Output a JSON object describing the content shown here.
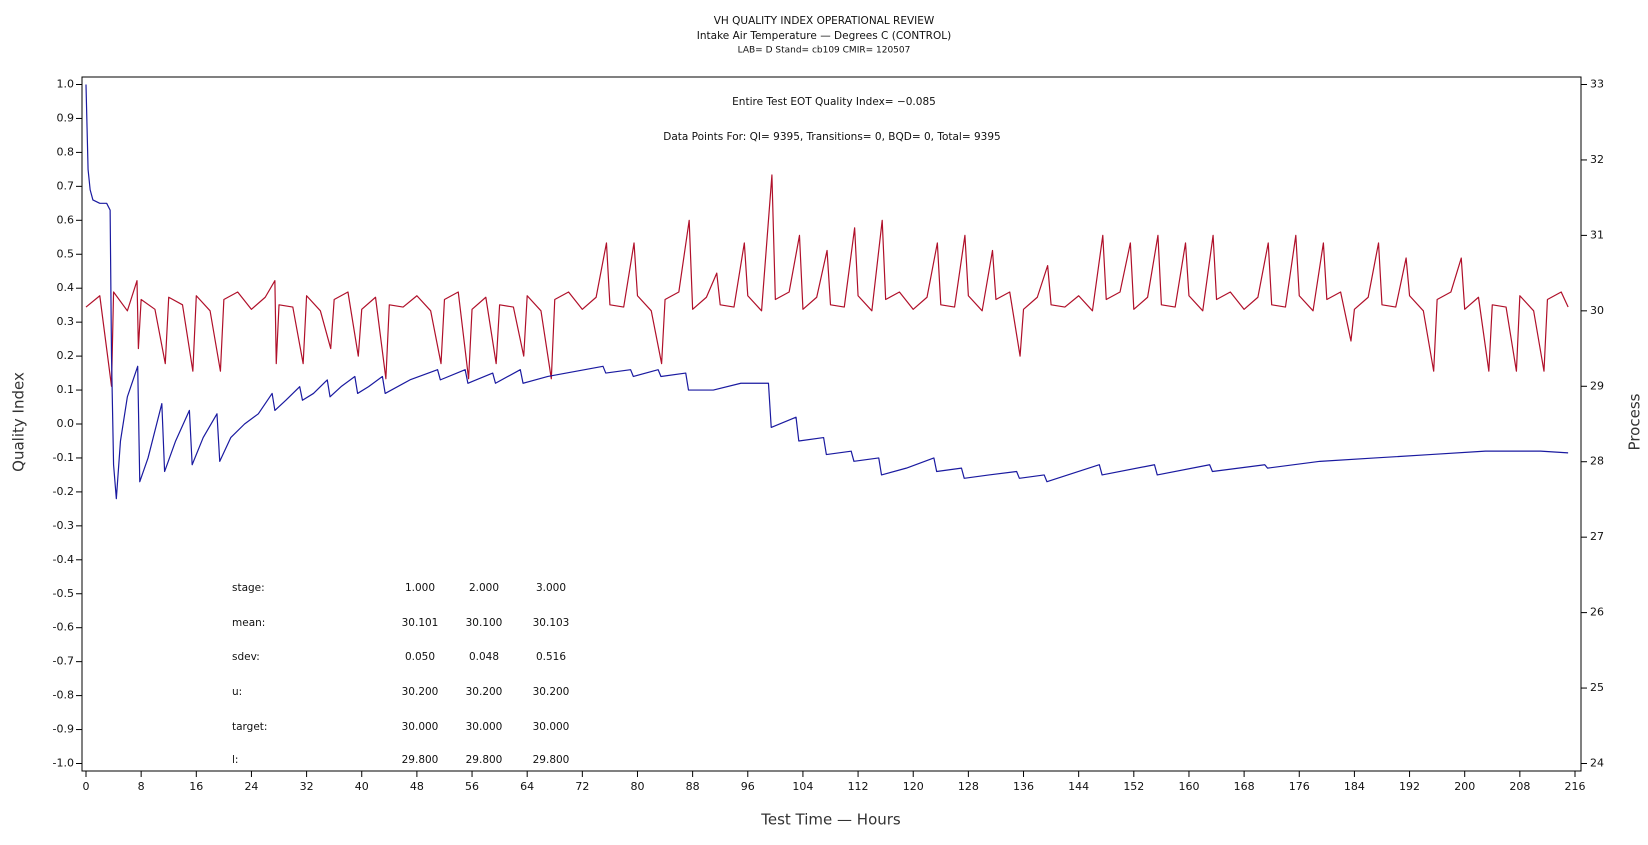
{
  "chart_data": {
    "type": "line",
    "title": "VH QUALITY INDEX OPERATIONAL REVIEW",
    "subtitle": "Intake Air Temperature — Degrees C (CONTROL)",
    "subtitle2": "LAB= D Stand= cb109 CMIR= 120507",
    "annotations": [
      "Entire Test EOT Quality Index=  −0.085",
      "Data Points For: QI=  9395, Transitions=     0, BQD=     0, Total=  9395"
    ],
    "stats": [
      {
        "label": "stage:",
        "values": [
          "1.000",
          "2.000",
          "3.000"
        ]
      },
      {
        "label": "mean:",
        "values": [
          "30.101",
          "30.100",
          "30.103"
        ]
      },
      {
        "label": "sdev:",
        "values": [
          "0.050",
          "0.048",
          "0.516"
        ]
      },
      {
        "label": "u:",
        "values": [
          "30.200",
          "30.200",
          "30.200"
        ]
      },
      {
        "label": "target:",
        "values": [
          "30.000",
          "30.000",
          "30.000"
        ]
      },
      {
        "label": "l:",
        "values": [
          "29.800",
          "29.800",
          "29.800"
        ]
      }
    ],
    "xlabel": "Test Time — Hours",
    "ylabel": "Quality Index",
    "y2label": "Process",
    "xlim": [
      0,
      216
    ],
    "xticks": [
      0,
      8,
      16,
      24,
      32,
      40,
      48,
      56,
      64,
      72,
      80,
      88,
      96,
      104,
      112,
      120,
      128,
      136,
      144,
      152,
      160,
      168,
      176,
      184,
      192,
      200,
      208,
      216
    ],
    "ylim": [
      -1.0,
      1.0
    ],
    "yticks": [
      {
        "value": 1.0,
        "label": "1.0"
      },
      0.9,
      0.8,
      0.7,
      0.6,
      0.5,
      0.4,
      0.3,
      0.2,
      0.1,
      {
        "value": 0.0,
        "label": "0.0"
      },
      -0.1,
      -0.2,
      -0.3,
      -0.4,
      -0.5,
      -0.6,
      -0.7,
      -0.8,
      -0.9,
      {
        "value": -1.0,
        "label": "-1.0"
      }
    ],
    "y2lim": [
      24,
      33
    ],
    "y2ticks": [
      24,
      25,
      26,
      27,
      28,
      29,
      30,
      31,
      32,
      33
    ],
    "series": [
      {
        "color": "#1a1aa0",
        "axis": "y",
        "x": [
          0,
          0.3,
          0.6,
          1,
          2,
          3,
          3.5,
          3.7,
          4,
          4.4,
          5,
          6,
          7.5,
          7.8,
          9,
          11,
          11.4,
          13,
          15,
          15.4,
          17,
          19,
          19.4,
          21,
          23,
          25,
          27,
          27.4,
          29,
          31,
          31.4,
          33,
          35,
          35.4,
          37,
          39,
          39.4,
          41,
          43,
          43.4,
          47,
          51,
          51.4,
          55,
          55.4,
          59,
          59.4,
          63,
          63.4,
          67,
          75,
          75.4,
          79,
          79.4,
          83,
          83.4,
          87,
          87.4,
          91,
          95,
          99,
          99.4,
          103,
          103.4,
          107,
          107.4,
          111,
          111.4,
          115,
          115.4,
          119,
          123,
          123.4,
          127,
          127.4,
          131,
          135,
          135.4,
          139,
          139.4,
          147,
          147.4,
          155,
          155.4,
          163,
          163.4,
          171,
          171.4,
          179,
          187,
          195,
          203,
          211,
          215
        ],
        "values": [
          1.0,
          0.75,
          0.69,
          0.66,
          0.65,
          0.65,
          0.63,
          0.2,
          -0.12,
          -0.22,
          -0.05,
          0.08,
          0.17,
          -0.17,
          -0.1,
          0.06,
          -0.14,
          -0.05,
          0.04,
          -0.12,
          -0.04,
          0.03,
          -0.11,
          -0.04,
          0.0,
          0.03,
          0.09,
          0.04,
          0.07,
          0.11,
          0.07,
          0.09,
          0.13,
          0.08,
          0.11,
          0.14,
          0.09,
          0.11,
          0.14,
          0.09,
          0.13,
          0.16,
          0.13,
          0.16,
          0.12,
          0.15,
          0.12,
          0.16,
          0.12,
          0.14,
          0.17,
          0.15,
          0.16,
          0.14,
          0.16,
          0.14,
          0.15,
          0.1,
          0.1,
          0.12,
          0.12,
          -0.01,
          0.02,
          -0.05,
          -0.04,
          -0.09,
          -0.08,
          -0.11,
          -0.1,
          -0.15,
          -0.13,
          -0.1,
          -0.14,
          -0.13,
          -0.16,
          -0.15,
          -0.14,
          -0.16,
          -0.15,
          -0.17,
          -0.12,
          -0.15,
          -0.12,
          -0.15,
          -0.12,
          -0.14,
          -0.12,
          -0.13,
          -0.11,
          -0.1,
          -0.09,
          -0.08,
          -0.08,
          -0.085
        ]
      },
      {
        "color": "#b0102a",
        "axis": "y2",
        "x": [
          0,
          2,
          3.7,
          4,
          6,
          7.4,
          7.6,
          8,
          10,
          11.5,
          12,
          14,
          15.5,
          16,
          18,
          19.5,
          20,
          22,
          24,
          26,
          27.4,
          27.6,
          28,
          30,
          31.5,
          32,
          34,
          35.5,
          36,
          38,
          39.5,
          40,
          42,
          43.5,
          44,
          46,
          48,
          50,
          51.5,
          52,
          54,
          55.5,
          56,
          58,
          59.5,
          60,
          62,
          63.5,
          64,
          66,
          67.5,
          68,
          70,
          72,
          74,
          75.5,
          76,
          78,
          79.5,
          80,
          82,
          83.5,
          84,
          86,
          87.5,
          88,
          90,
          91.5,
          92,
          94,
          95.5,
          96,
          98,
          99.5,
          100,
          102,
          103.5,
          104,
          106,
          107.5,
          108,
          110,
          111.5,
          112,
          114,
          115.5,
          116,
          118,
          120,
          122,
          123.5,
          124,
          126,
          127.5,
          128,
          130,
          131.5,
          132,
          134,
          135.5,
          136,
          138,
          139.5,
          140,
          142,
          144,
          146,
          147.5,
          148,
          150,
          151.5,
          152,
          154,
          155.5,
          156,
          158,
          159.5,
          160,
          162,
          163.5,
          164,
          166,
          168,
          170,
          171.5,
          172,
          174,
          175.5,
          176,
          178,
          179.5,
          180,
          182,
          183.5,
          184,
          186,
          187.5,
          188,
          190,
          191.5,
          192,
          194,
          195.5,
          196,
          198,
          199.5,
          200,
          202,
          203.5,
          204,
          206,
          207.5,
          208,
          210,
          211.5,
          212,
          214,
          215
        ],
        "values": [
          30.05,
          30.2,
          29.0,
          30.25,
          30.0,
          30.4,
          29.5,
          30.15,
          30.02,
          29.3,
          30.18,
          30.08,
          29.2,
          30.2,
          30.0,
          29.2,
          30.15,
          30.25,
          30.02,
          30.18,
          30.4,
          29.3,
          30.08,
          30.05,
          29.3,
          30.2,
          30.0,
          29.5,
          30.15,
          30.25,
          29.4,
          30.02,
          30.18,
          29.1,
          30.08,
          30.05,
          30.2,
          30.0,
          29.3,
          30.15,
          30.25,
          29.1,
          30.02,
          30.18,
          29.3,
          30.08,
          30.05,
          29.4,
          30.2,
          30.0,
          29.1,
          30.15,
          30.25,
          30.02,
          30.18,
          30.9,
          30.08,
          30.05,
          30.9,
          30.2,
          30.0,
          29.3,
          30.15,
          30.25,
          31.2,
          30.02,
          30.18,
          30.5,
          30.08,
          30.05,
          30.9,
          30.2,
          30.0,
          31.8,
          30.15,
          30.25,
          31.0,
          30.02,
          30.18,
          30.8,
          30.08,
          30.05,
          31.1,
          30.2,
          30.0,
          31.2,
          30.15,
          30.25,
          30.02,
          30.18,
          30.9,
          30.08,
          30.05,
          31.0,
          30.2,
          30.0,
          30.8,
          30.15,
          30.25,
          29.4,
          30.02,
          30.18,
          30.6,
          30.08,
          30.05,
          30.2,
          30.0,
          31.0,
          30.15,
          30.25,
          30.9,
          30.02,
          30.18,
          31.0,
          30.08,
          30.05,
          30.9,
          30.2,
          30.0,
          31.0,
          30.15,
          30.25,
          30.02,
          30.18,
          30.9,
          30.08,
          30.05,
          31.0,
          30.2,
          30.0,
          30.9,
          30.15,
          30.25,
          29.6,
          30.02,
          30.18,
          30.9,
          30.08,
          30.05,
          30.7,
          30.2,
          30.0,
          29.2,
          30.15,
          30.25,
          30.7,
          30.02,
          30.18,
          29.2,
          30.08,
          30.05,
          29.2,
          30.2,
          30.0,
          29.2,
          30.15,
          30.25,
          30.05
        ]
      }
    ]
  }
}
